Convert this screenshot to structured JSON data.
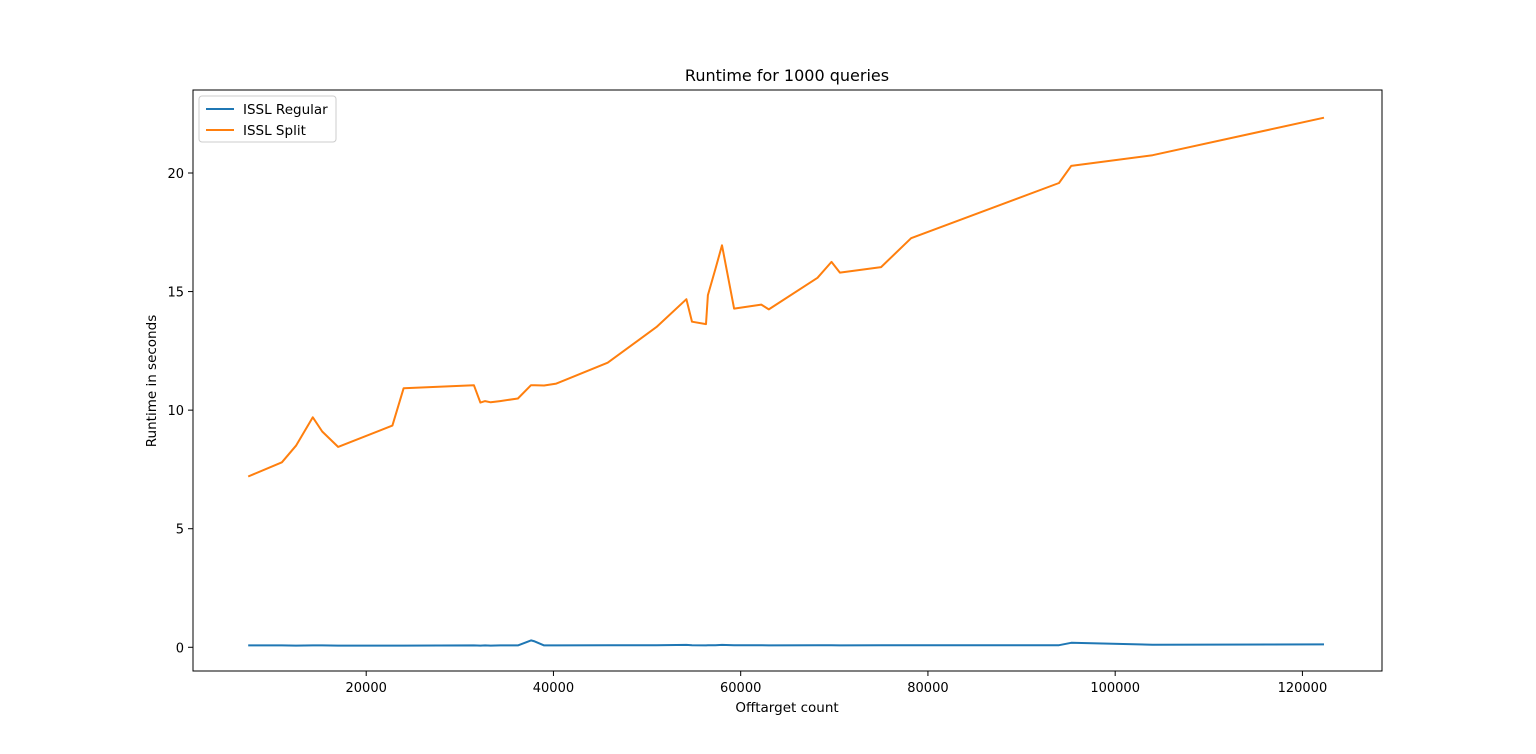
{
  "chart_data": {
    "type": "line",
    "title": "Runtime for 1000 queries",
    "xlabel": "Offtarget count",
    "ylabel": "Runtime in seconds",
    "xlim": [
      1500,
      128500
    ],
    "ylim": [
      -1.0,
      23.5
    ],
    "xticks": [
      20000,
      40000,
      60000,
      80000,
      100000,
      120000
    ],
    "yticks": [
      0,
      5,
      10,
      15,
      20
    ],
    "grid": false,
    "legend_position": "upper-left",
    "series": [
      {
        "name": "ISSL Regular",
        "color": "#1f77b4",
        "points": [
          [
            7400,
            0.08
          ],
          [
            11000,
            0.08
          ],
          [
            12500,
            0.07
          ],
          [
            14300,
            0.08
          ],
          [
            15300,
            0.08
          ],
          [
            17000,
            0.07
          ],
          [
            22800,
            0.07
          ],
          [
            24000,
            0.07
          ],
          [
            31500,
            0.08
          ],
          [
            32200,
            0.07
          ],
          [
            32700,
            0.08
          ],
          [
            33300,
            0.07
          ],
          [
            34300,
            0.08
          ],
          [
            36200,
            0.08
          ],
          [
            37600,
            0.29
          ],
          [
            38000,
            0.25
          ],
          [
            39000,
            0.08
          ],
          [
            40300,
            0.08
          ],
          [
            45800,
            0.09
          ],
          [
            51000,
            0.09
          ],
          [
            54200,
            0.1
          ],
          [
            54800,
            0.09
          ],
          [
            56300,
            0.08
          ],
          [
            56500,
            0.09
          ],
          [
            57300,
            0.09
          ],
          [
            58000,
            0.1
          ],
          [
            59300,
            0.09
          ],
          [
            62200,
            0.09
          ],
          [
            63000,
            0.08
          ],
          [
            68200,
            0.09
          ],
          [
            69700,
            0.09
          ],
          [
            70600,
            0.08
          ],
          [
            75000,
            0.09
          ],
          [
            78200,
            0.09
          ],
          [
            94000,
            0.09
          ],
          [
            95300,
            0.19
          ],
          [
            104000,
            0.11
          ],
          [
            122300,
            0.12
          ]
        ]
      },
      {
        "name": "ISSL Split",
        "color": "#ff7f0e",
        "points": [
          [
            7400,
            7.2
          ],
          [
            11000,
            7.8
          ],
          [
            12500,
            8.5
          ],
          [
            14300,
            9.7
          ],
          [
            15300,
            9.1
          ],
          [
            17000,
            8.45
          ],
          [
            22800,
            9.35
          ],
          [
            24000,
            10.92
          ],
          [
            31500,
            11.05
          ],
          [
            32200,
            10.32
          ],
          [
            32700,
            10.38
          ],
          [
            33300,
            10.33
          ],
          [
            34300,
            10.38
          ],
          [
            36200,
            10.49
          ],
          [
            37600,
            11.05
          ],
          [
            38000,
            11.05
          ],
          [
            39000,
            11.04
          ],
          [
            40300,
            11.12
          ],
          [
            45800,
            12.0
          ],
          [
            51000,
            13.5
          ],
          [
            54200,
            14.68
          ],
          [
            54800,
            13.73
          ],
          [
            56300,
            13.63
          ],
          [
            56500,
            14.85
          ],
          [
            57300,
            15.95
          ],
          [
            58000,
            16.95
          ],
          [
            59300,
            14.28
          ],
          [
            62200,
            14.45
          ],
          [
            63000,
            14.25
          ],
          [
            68200,
            15.58
          ],
          [
            69700,
            16.25
          ],
          [
            70600,
            15.8
          ],
          [
            75000,
            16.03
          ],
          [
            78200,
            17.25
          ],
          [
            94000,
            19.58
          ],
          [
            95300,
            20.3
          ],
          [
            104000,
            20.75
          ],
          [
            122300,
            22.33
          ]
        ]
      }
    ]
  }
}
